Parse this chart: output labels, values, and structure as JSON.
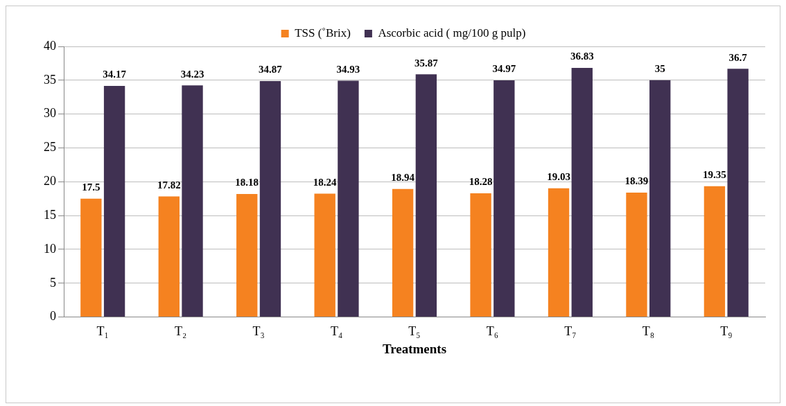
{
  "chart_data": {
    "type": "bar",
    "xlabel": "Treatments",
    "categories": [
      "T₁",
      "T₂",
      "T₃",
      "T₄",
      "T₅",
      "T₆",
      "T₇",
      "T₈",
      "T₉"
    ],
    "series": [
      {
        "name": "TSS (˚Brix)",
        "color": "#f58220",
        "values": [
          17.5,
          17.82,
          18.18,
          18.24,
          18.94,
          18.28,
          19.03,
          18.39,
          19.35
        ]
      },
      {
        "name": "Ascorbic acid ( mg/100 g pulp)",
        "color": "#403152",
        "values": [
          34.17,
          34.23,
          34.87,
          34.93,
          35.87,
          34.97,
          36.83,
          35,
          36.7
        ]
      }
    ],
    "ylim": [
      0,
      40
    ],
    "yticks": [
      0,
      5,
      10,
      15,
      20,
      25,
      30,
      35,
      40
    ],
    "grid": "y",
    "legend": "top",
    "data_labels": true
  }
}
